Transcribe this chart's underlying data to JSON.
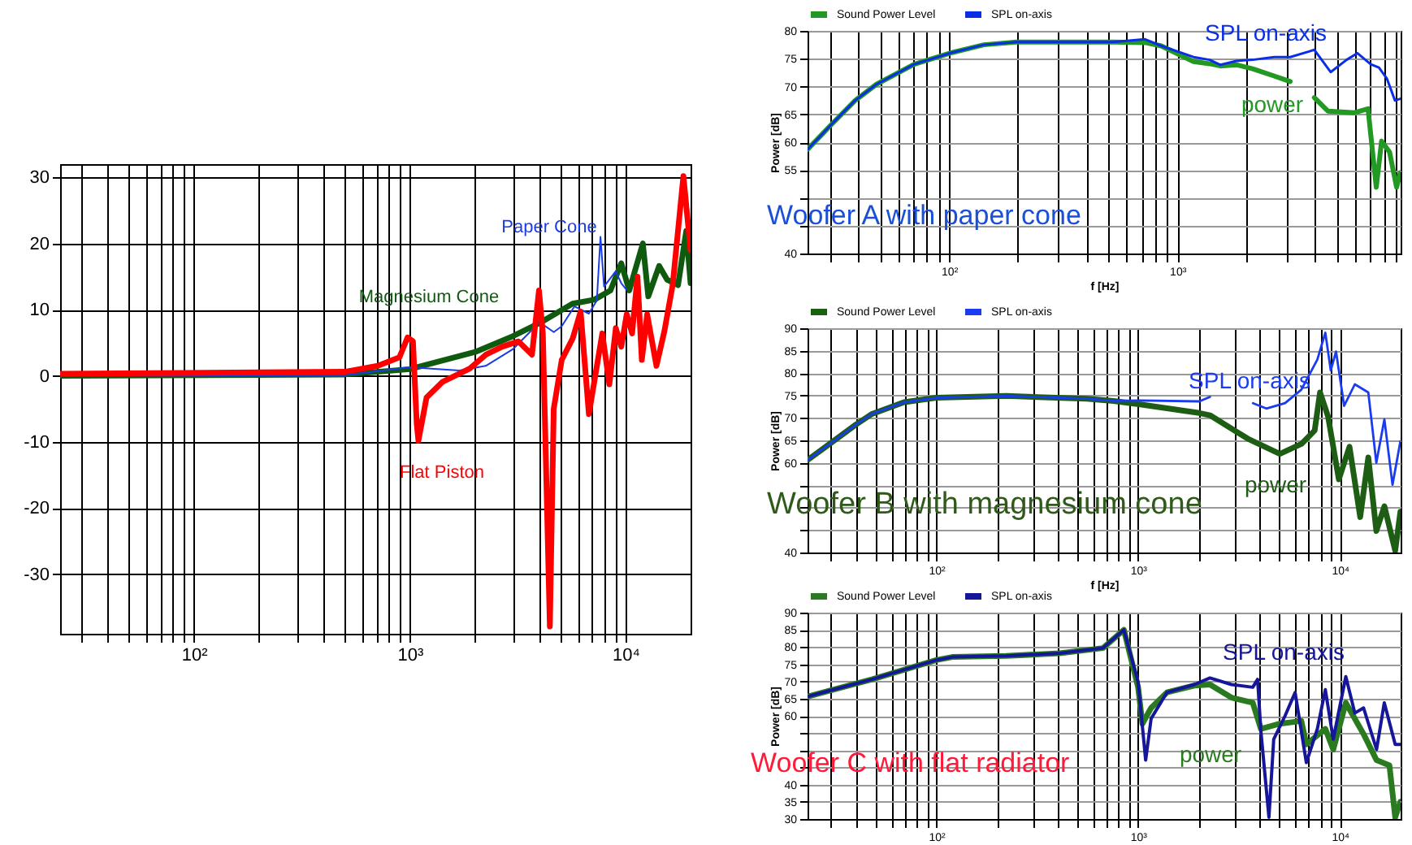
{
  "chart_data": [
    {
      "type": "line",
      "xlim": [
        24,
        20000
      ],
      "ylim": [
        -39,
        32
      ],
      "yticks": [
        -30,
        -20,
        -10,
        0,
        10,
        20,
        30
      ],
      "log": "x",
      "grid": true,
      "xticks": [
        {
          "value": 30,
          "label": null
        },
        {
          "value": 40,
          "label": null
        },
        {
          "value": 50,
          "label": null
        },
        {
          "value": 60,
          "label": null
        },
        {
          "value": 70,
          "label": null
        },
        {
          "value": 80,
          "label": null
        },
        {
          "value": 90,
          "label": null
        },
        {
          "value": 100,
          "label": "10²"
        },
        {
          "value": 200,
          "label": null
        },
        {
          "value": 300,
          "label": null
        },
        {
          "value": 400,
          "label": null
        },
        {
          "value": 500,
          "label": null
        },
        {
          "value": 600,
          "label": null
        },
        {
          "value": 700,
          "label": null
        },
        {
          "value": 800,
          "label": null
        },
        {
          "value": 900,
          "label": null
        },
        {
          "value": 1000,
          "label": "10³"
        },
        {
          "value": 2000,
          "label": null
        },
        {
          "value": 3000,
          "label": null
        },
        {
          "value": 4000,
          "label": null
        },
        {
          "value": 5000,
          "label": null
        },
        {
          "value": 6000,
          "label": null
        },
        {
          "value": 7000,
          "label": null
        },
        {
          "value": 8000,
          "label": null
        },
        {
          "value": 9000,
          "label": null
        },
        {
          "value": 10000,
          "label": "10⁴"
        }
      ],
      "series": [
        {
          "color": "#0f5a0f",
          "x": [
            24,
            500,
            1000,
            2010,
            3010,
            4010,
            4920,
            5680,
            7160,
            8510,
            9550,
            10400,
            12020,
            12740,
            14300,
            15600,
            17500,
            19100,
            20000
          ],
          "values": [
            0,
            0.2,
            1,
            3.6,
            6,
            8,
            9.7,
            10.9,
            11.5,
            12.9,
            17,
            12.9,
            20,
            12,
            16.6,
            14.5,
            13.7,
            21.9,
            14
          ]
        },
        {
          "color": "#1a3ce6",
          "x": [
            24,
            500,
            1000,
            1700,
            2250,
            3000,
            4000,
            4650,
            5060,
            5800,
            6760,
            7360,
            7650,
            7950,
            9000,
            9550,
            10100
          ],
          "values": [
            0,
            0.1,
            1.3,
            0.8,
            1.5,
            4,
            8.1,
            6.6,
            7.5,
            10.5,
            9.4,
            11.4,
            21,
            13.5,
            15.8,
            14,
            13
          ]
        },
        {
          "color": "#ff0000",
          "x": [
            24,
            500,
            711,
            896,
            977,
            1035,
            1078,
            1097,
            1196,
            1422,
            1897,
            2256,
            2685,
            3190,
            3684,
            3970,
            4137,
            4458,
            4645,
            5060,
            5680,
            6190,
            6760,
            7160,
            7800,
            8410,
            9010,
            9550,
            10120,
            10720,
            11350,
            11890,
            12590,
            13900,
            15140,
            16520,
            18530,
            20000
          ],
          "values": [
            0.3,
            0.6,
            1.5,
            2.8,
            5.8,
            5.2,
            -7.4,
            -9.8,
            -3.3,
            -0.9,
            1.1,
            3.2,
            4.4,
            5.2,
            3.2,
            12.9,
            6.4,
            -37.9,
            -5,
            2.4,
            5.6,
            9.7,
            -5.8,
            -0.9,
            6.4,
            -1.3,
            7.2,
            4.4,
            9.3,
            6.4,
            15,
            2.4,
            9.3,
            1.5,
            6.8,
            13.7,
            30.2,
            19
          ]
        }
      ],
      "annotations": [
        "Magnesium Cone",
        "Paper Cone",
        "Flat Piston"
      ]
    },
    {
      "type": "line",
      "title": "Woofer A with paper cone",
      "xlabel": "f [Hz]",
      "ylabel": "Power [dB]",
      "xlim": [
        24,
        9500
      ],
      "ylim": [
        40,
        80
      ],
      "log": "x",
      "grid": true,
      "legend": "top",
      "yticks": [
        40,
        {
          "value": 45,
          "label": null
        },
        {
          "value": 50,
          "label": null
        },
        55,
        60,
        65,
        70,
        75,
        80
      ],
      "xticks": [
        {
          "value": 30,
          "label": null
        },
        {
          "value": 40,
          "label": null
        },
        {
          "value": 50,
          "label": null
        },
        {
          "value": 60,
          "label": null
        },
        {
          "value": 70,
          "label": null
        },
        {
          "value": 80,
          "label": null
        },
        {
          "value": 90,
          "label": null
        },
        {
          "value": 100,
          "label": "10²"
        },
        {
          "value": 200,
          "label": null
        },
        {
          "value": 300,
          "label": null
        },
        {
          "value": 400,
          "label": null
        },
        {
          "value": 500,
          "label": null
        },
        {
          "value": 600,
          "label": null
        },
        {
          "value": 700,
          "label": null
        },
        {
          "value": 800,
          "label": null
        },
        {
          "value": 900,
          "label": null
        },
        {
          "value": 1000,
          "label": "10³"
        },
        {
          "value": 2000,
          "label": null
        },
        {
          "value": 3000,
          "label": null
        },
        {
          "value": 4000,
          "label": null
        },
        {
          "value": 5000,
          "label": null
        },
        {
          "value": 6000,
          "label": null
        },
        {
          "value": 7000,
          "label": null
        },
        {
          "value": 8000,
          "label": null
        },
        {
          "value": 9000,
          "label": null
        }
      ],
      "series": [
        {
          "name": "Sound Power Level",
          "color": "#229922",
          "x": [
            24,
            30.4,
            38.8,
            48.1,
            70.3,
            103,
            142,
            197,
            522,
            722,
            850,
            1177,
            1384,
            1543,
            1815,
            2134,
            2652,
            3120,
            3500,
            3980,
            4560,
            5970,
            6840,
            7430,
            7840,
            8500,
            9120,
            9470
          ],
          "values": [
            58.7,
            63.1,
            67.5,
            70.4,
            74,
            76.1,
            77.5,
            78,
            78,
            77.9,
            77.3,
            74.5,
            74.1,
            73.7,
            73.9,
            73.2,
            71.9,
            70.9,
            null,
            68,
            65.6,
            65.3,
            66,
            51.9,
            60.2,
            58.2,
            51.9,
            54.5
          ]
        },
        {
          "name": "SPL on-axis",
          "color": "#0a2ee6",
          "x": [
            24,
            30.4,
            38.8,
            48.1,
            70.3,
            103,
            142,
            197,
            522,
            722,
            850,
            1177,
            1384,
            1543,
            1815,
            2134,
            2652,
            3120,
            3770,
            3980,
            4690,
            5510,
            6140,
            7030,
            7630,
            8280,
            8970,
            9470
          ],
          "values": [
            58.7,
            63.1,
            67.5,
            70.4,
            74,
            76.1,
            77.5,
            78,
            78,
            78.5,
            77.3,
            75.3,
            74.8,
            73.9,
            74.6,
            74.8,
            75.3,
            75.3,
            76.3,
            76.6,
            72.6,
            74.8,
            76,
            74,
            73.4,
            71.4,
            67.5,
            67.8
          ]
        }
      ],
      "annotations": [
        "power",
        "SPL on-axis"
      ]
    },
    {
      "type": "line",
      "title": "Woofer B with magnesium cone",
      "xlabel": "f [Hz]",
      "ylabel": "Power [dB]",
      "xlim": [
        23,
        20000
      ],
      "ylim": [
        40,
        90
      ],
      "log": "x",
      "grid": true,
      "legend": "top",
      "yticks": [
        40,
        {
          "value": 45,
          "label": null
        },
        {
          "value": 50,
          "label": null
        },
        {
          "value": 55,
          "label": null
        },
        60,
        65,
        70,
        75,
        80,
        85,
        90
      ],
      "xticks": [
        {
          "value": 30,
          "label": null
        },
        {
          "value": 40,
          "label": null
        },
        {
          "value": 50,
          "label": null
        },
        {
          "value": 60,
          "label": null
        },
        {
          "value": 70,
          "label": null
        },
        {
          "value": 80,
          "label": null
        },
        {
          "value": 90,
          "label": null
        },
        {
          "value": 100,
          "label": "10²"
        },
        {
          "value": 200,
          "label": null
        },
        {
          "value": 300,
          "label": null
        },
        {
          "value": 400,
          "label": null
        },
        {
          "value": 500,
          "label": null
        },
        {
          "value": 600,
          "label": null
        },
        {
          "value": 700,
          "label": null
        },
        {
          "value": 800,
          "label": null
        },
        {
          "value": 900,
          "label": null
        },
        {
          "value": 1000,
          "label": "10³"
        },
        {
          "value": 2000,
          "label": null
        },
        {
          "value": 3000,
          "label": null
        },
        {
          "value": 4000,
          "label": null
        },
        {
          "value": 5000,
          "label": null
        },
        {
          "value": 6000,
          "label": null
        },
        {
          "value": 7000,
          "label": null
        },
        {
          "value": 8000,
          "label": null
        },
        {
          "value": 9000,
          "label": null
        },
        {
          "value": 10000,
          "label": "10⁴"
        }
      ],
      "series": [
        {
          "name": "Sound Power Level",
          "color": "#1e5e14",
          "x": [
            23,
            39.9,
            48,
            69.2,
            100,
            222,
            556,
            755,
            1025,
            2010,
            2270,
            3490,
            5040,
            6440,
            7500,
            7970,
            8740,
            9880,
            11160,
            12610,
            13830,
            15160,
            16620,
            18800,
            19950
          ],
          "values": [
            60.6,
            68.5,
            70.9,
            73.5,
            74.5,
            74.9,
            74.3,
            73.8,
            73,
            71.1,
            70.6,
            65.4,
            62,
            64.2,
            67.2,
            75.7,
            70.3,
            56.3,
            63.6,
            47.9,
            61.2,
            44.8,
            50.3,
            40.4,
            49.1
          ]
        },
        {
          "name": "SPL on-axis",
          "color": "#1a3cf0",
          "x": [
            23,
            39.9,
            48,
            69.2,
            100,
            222,
            556,
            755,
            1025,
            2010,
            2270,
            2800,
            3710,
            4320,
            5350,
            6440,
            7730,
            8470,
            9010,
            9570,
            10500,
            11860,
            13830,
            15160,
            16620,
            18230,
            19950
          ],
          "values": [
            60.6,
            68.5,
            70.9,
            73.5,
            74.5,
            74.9,
            74.3,
            73.8,
            73.9,
            73.7,
            74.7,
            null,
            73.3,
            72.1,
            73.3,
            76.3,
            83,
            89,
            80.6,
            84.8,
            72.7,
            77.5,
            75.7,
            60,
            69.7,
            55.1,
            64.8
          ]
        }
      ],
      "annotations": [
        "power",
        "SPL on-axis"
      ]
    },
    {
      "type": "line",
      "title": "Woofer C with flat radiator",
      "ylabel": "Power [dB]",
      "xlim": [
        23,
        20000
      ],
      "ylim": [
        30,
        90
      ],
      "log": "x",
      "grid": true,
      "legend": "top",
      "yticks": [
        30,
        35,
        40,
        {
          "value": 45,
          "label": null
        },
        {
          "value": 50,
          "label": null
        },
        {
          "value": 55,
          "label": null
        },
        60,
        65,
        70,
        75,
        80,
        85,
        90
      ],
      "xticks": [
        {
          "value": 30,
          "label": null
        },
        {
          "value": 40,
          "label": null
        },
        {
          "value": 50,
          "label": null
        },
        {
          "value": 60,
          "label": null
        },
        {
          "value": 70,
          "label": null
        },
        {
          "value": 80,
          "label": null
        },
        {
          "value": 90,
          "label": null
        },
        {
          "value": 100,
          "label": "10²"
        },
        {
          "value": 200,
          "label": null
        },
        {
          "value": 300,
          "label": null
        },
        {
          "value": 400,
          "label": null
        },
        {
          "value": 500,
          "label": null
        },
        {
          "value": 600,
          "label": null
        },
        {
          "value": 700,
          "label": null
        },
        {
          "value": 800,
          "label": null
        },
        {
          "value": 900,
          "label": null
        },
        {
          "value": 1000,
          "label": "10³"
        },
        {
          "value": 2000,
          "label": null
        },
        {
          "value": 3000,
          "label": null
        },
        {
          "value": 4000,
          "label": null
        },
        {
          "value": 5000,
          "label": null
        },
        {
          "value": 6000,
          "label": null
        },
        {
          "value": 7000,
          "label": null
        },
        {
          "value": 8000,
          "label": null
        },
        {
          "value": 9000,
          "label": null
        },
        {
          "value": 10000,
          "label": "10⁴"
        }
      ],
      "series": [
        {
          "name": "Sound Power Level",
          "color": "#2a7a20",
          "x": [
            23,
            48,
            100,
            120,
            222,
            409,
            670,
            850,
            1000,
            1050,
            1160,
            1390,
            1900,
            2270,
            2900,
            3700,
            4060,
            5040,
            6440,
            6820,
            8470,
            9270,
            10700,
            13100,
            15200,
            17600,
            18800,
            19950
          ],
          "values": [
            65.6,
            70.6,
            76.2,
            77.1,
            77.4,
            78.2,
            79.7,
            85,
            68.3,
            57.7,
            62.3,
            66.8,
            68.8,
            69.1,
            65.3,
            63.8,
            56.2,
            57.7,
            58.5,
            51.7,
            56.2,
            50.2,
            63.8,
            54.7,
            47.1,
            45.6,
            30.5,
            35
          ]
        },
        {
          "name": "SPL on-axis",
          "color": "#16169a",
          "x": [
            23,
            48,
            100,
            120,
            222,
            409,
            670,
            850,
            1000,
            1090,
            1160,
            1390,
            1900,
            2270,
            2900,
            3700,
            3910,
            4060,
            4450,
            4700,
            5350,
            6000,
            6820,
            7730,
            8470,
            9270,
            10700,
            11860,
            13100,
            15200,
            16600,
            18800,
            19950
          ],
          "values": [
            65.6,
            70.6,
            76.2,
            77.1,
            77.4,
            78.2,
            79.7,
            85,
            69.8,
            47.1,
            59.2,
            66.8,
            69.1,
            71,
            69.1,
            68.3,
            70.6,
            55.5,
            30.5,
            53.2,
            60,
            66.8,
            46.4,
            56.2,
            67.6,
            53.2,
            71.4,
            60.8,
            62.3,
            50.2,
            63.8,
            51.7,
            51.7
          ]
        }
      ],
      "annotations": [
        "power",
        "SPL on-axis"
      ]
    }
  ]
}
